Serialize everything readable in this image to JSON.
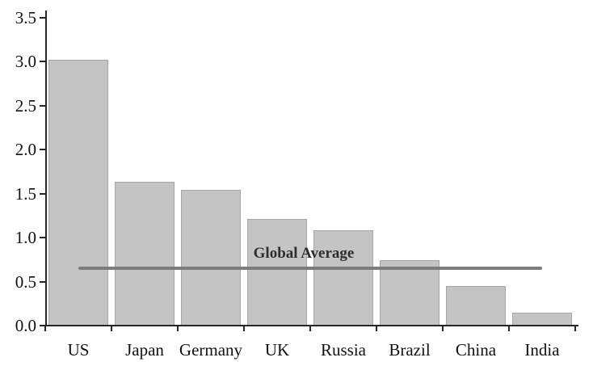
{
  "chart_data": {
    "type": "bar",
    "title": "",
    "xlabel": "",
    "ylabel": "",
    "categories": [
      "US",
      "Japan",
      "Germany",
      "UK",
      "Russia",
      "Brazil",
      "China",
      "India"
    ],
    "values": [
      3.02,
      1.63,
      1.54,
      1.21,
      1.08,
      0.74,
      0.45,
      0.15
    ],
    "ylim": [
      0.0,
      3.5
    ],
    "y_ticks": [
      0.0,
      0.5,
      1.0,
      1.5,
      2.0,
      2.5,
      3.0,
      3.5
    ],
    "y_tick_labels": [
      "0.0",
      "0.5",
      "1.0",
      "1.5",
      "2.0",
      "2.5",
      "3.0",
      "3.5"
    ],
    "grid": false,
    "legend": false,
    "bar_color": "#c4c4c4",
    "bar_border_color": "#a6a6a6",
    "axis_color": "#262626",
    "text_color": "#111111",
    "average_line": {
      "label": "Global Average",
      "value": 0.65,
      "color": "#7c7c7c",
      "span_categories": [
        "US",
        "India"
      ]
    }
  }
}
